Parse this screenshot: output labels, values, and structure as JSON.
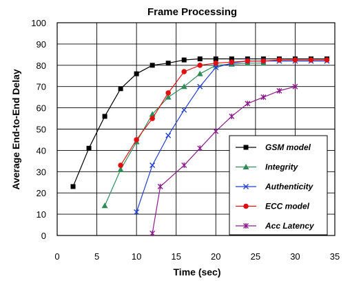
{
  "chart_data": {
    "type": "line",
    "title": "Frame Processing",
    "xlabel": "Time (sec)",
    "ylabel": "Average End-to-End Delay",
    "xlim": [
      0,
      35
    ],
    "ylim": [
      0,
      100
    ],
    "x_ticks": [
      "0",
      "5",
      "10",
      "15",
      "20",
      "25",
      "30",
      "35"
    ],
    "y_ticks": [
      "0",
      "10",
      "20",
      "30",
      "40",
      "50",
      "60",
      "70",
      "80",
      "90",
      "100"
    ],
    "grid": true,
    "legend_position": "bottom-right",
    "series": [
      {
        "name": "GSM model",
        "color": "#000000",
        "marker": "square",
        "x": [
          2,
          4,
          6,
          8,
          10,
          12,
          14,
          16,
          18,
          20,
          22,
          24,
          26,
          28,
          30,
          32,
          34
        ],
        "y": [
          23,
          41,
          56,
          69,
          76,
          80,
          81,
          82.5,
          83,
          83,
          83,
          83,
          83,
          83,
          83,
          83,
          83
        ]
      },
      {
        "name": "Integrity",
        "color": "#2e8b57",
        "marker": "triangle",
        "x": [
          6,
          8,
          10,
          12,
          14,
          16,
          18,
          20,
          22,
          24,
          26
        ],
        "y": [
          14,
          31,
          44,
          57,
          65,
          70,
          76,
          80,
          80.5,
          81,
          81
        ]
      },
      {
        "name": "Authenticity",
        "color": "#1f3fcf",
        "marker": "x",
        "x": [
          10,
          12,
          14,
          16,
          18,
          20,
          22,
          24,
          26,
          28,
          30,
          32,
          34
        ],
        "y": [
          11,
          33,
          47,
          59,
          70,
          79,
          81,
          82,
          82,
          82,
          82,
          82,
          82
        ]
      },
      {
        "name": "ECC model",
        "color": "#e01010",
        "marker": "circle",
        "x": [
          8,
          10,
          12,
          14,
          16,
          18,
          20,
          22,
          24,
          26,
          28,
          30,
          32,
          34
        ],
        "y": [
          33,
          45,
          55,
          67,
          77,
          80,
          81,
          81.5,
          82,
          82,
          82.5,
          82.5,
          82.5,
          82.5
        ]
      },
      {
        "name": "Acc Latency",
        "color": "#8b1a8b",
        "marker": "star",
        "x": [
          12,
          13,
          16,
          18,
          20,
          22,
          24,
          26,
          28,
          30
        ],
        "y": [
          1,
          23,
          33,
          41,
          49,
          56,
          62,
          65,
          68,
          70
        ]
      }
    ]
  }
}
